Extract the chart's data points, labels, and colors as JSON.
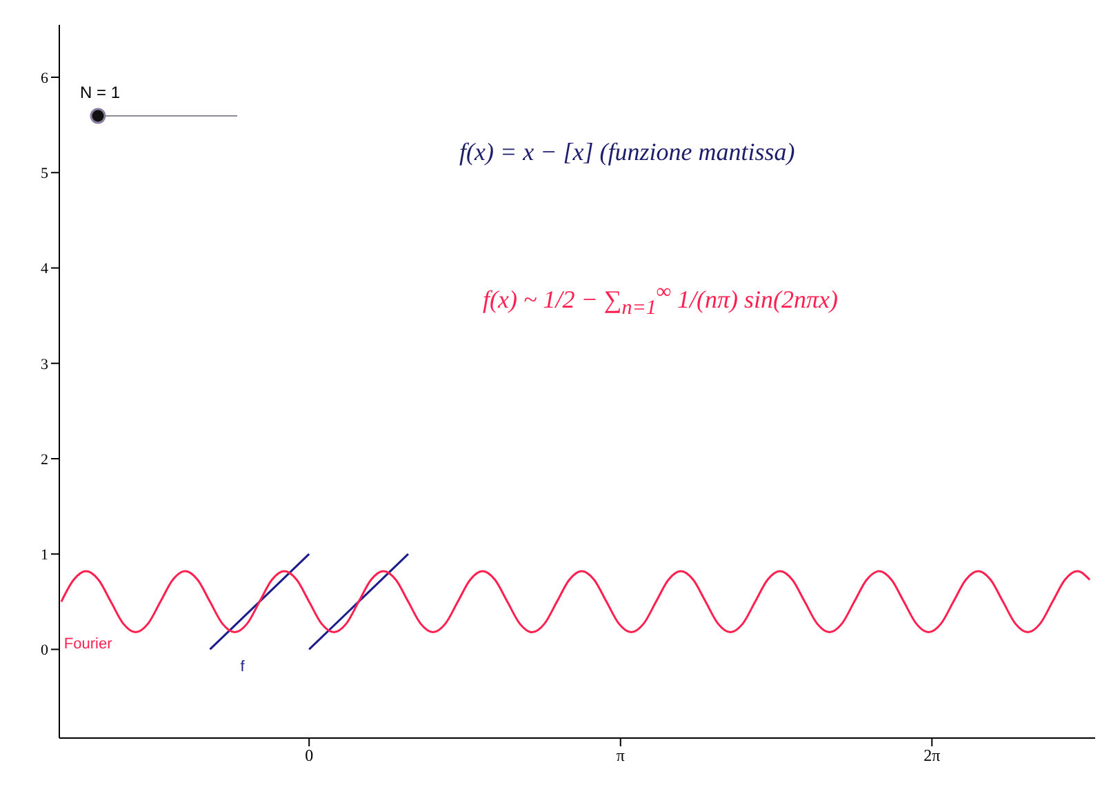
{
  "chart_data": {
    "type": "line",
    "xlim": [
      -2.52,
      7.93
    ],
    "ylim": [
      -0.93,
      6.55
    ],
    "xticks": [
      0,
      {
        "value": 3.1416,
        "label": "π"
      },
      {
        "value": 6.2832,
        "label": "2π"
      }
    ],
    "yticks": [
      0,
      1,
      2,
      3,
      4,
      5,
      6
    ],
    "series": [
      {
        "name": "f",
        "color": "#1c1c8c",
        "x": [
          -1,
          0
        ],
        "values": [
          0,
          1
        ]
      },
      {
        "color": "#1c1c8c",
        "x": [
          0,
          1
        ],
        "values": [
          0,
          1
        ]
      },
      {
        "name": "Fourier",
        "color": "#ff2050",
        "x": [
          -2.5,
          -2.375,
          -2.25,
          -2.125,
          -2,
          -1.875,
          -1.75,
          -1.625,
          -1.5,
          -1.375,
          -1.25,
          -1.125,
          -1,
          -0.875,
          -0.75,
          -0.625,
          -0.5,
          -0.375,
          -0.25,
          -0.125,
          0,
          0.125,
          0.25,
          0.375,
          0.5,
          0.625,
          0.75,
          0.875,
          1,
          1.125,
          1.25,
          1.375,
          1.5,
          1.625,
          1.75,
          1.875,
          2,
          2.125,
          2.25,
          2.375,
          2.5,
          2.625,
          2.75,
          2.875,
          3,
          3.125,
          3.25,
          3.375,
          3.5,
          3.625,
          3.75,
          3.875,
          4,
          4.125,
          4.25,
          4.375,
          4.5,
          4.625,
          4.75,
          4.875,
          5,
          5.125,
          5.25,
          5.375,
          5.5,
          5.625,
          5.75,
          5.875,
          6,
          6.125,
          6.25,
          6.375,
          6.5,
          6.625,
          6.75,
          6.875,
          7,
          7.125,
          7.25,
          7.375,
          7.5,
          7.625,
          7.75,
          7.875
        ],
        "values": [
          0.5,
          0.73,
          0.82,
          0.73,
          0.5,
          0.27,
          0.18,
          0.27,
          0.5,
          0.73,
          0.82,
          0.73,
          0.5,
          0.27,
          0.18,
          0.27,
          0.5,
          0.73,
          0.82,
          0.73,
          0.5,
          0.27,
          0.18,
          0.27,
          0.5,
          0.73,
          0.82,
          0.73,
          0.5,
          0.27,
          0.18,
          0.27,
          0.5,
          0.73,
          0.82,
          0.73,
          0.5,
          0.27,
          0.18,
          0.27,
          0.5,
          0.73,
          0.82,
          0.73,
          0.5,
          0.27,
          0.18,
          0.27,
          0.5,
          0.73,
          0.82,
          0.73,
          0.5,
          0.27,
          0.18,
          0.27,
          0.5,
          0.73,
          0.82,
          0.73,
          0.5,
          0.27,
          0.18,
          0.27,
          0.5,
          0.73,
          0.82,
          0.73,
          0.5,
          0.27,
          0.18,
          0.27,
          0.5,
          0.73,
          0.82,
          0.73,
          0.5,
          0.27,
          0.18,
          0.27,
          0.5,
          0.73,
          0.82,
          0.73
        ]
      }
    ],
    "annotations": [
      "N = 1",
      "f(x) =  x − [x] (funzione mantissa)",
      "f(x) ~ 1/2 − ∑$_{n=1}$$^{∞}$ 1/(nπ) sin(2nπx)"
    ],
    "marker": "none",
    "line_style": "solid"
  }
}
